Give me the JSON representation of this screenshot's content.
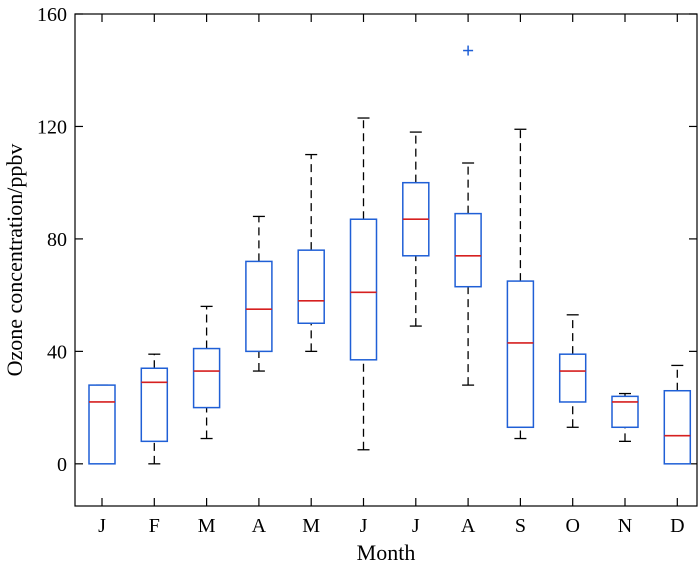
{
  "chart_data": {
    "type": "box",
    "xlabel": "Month",
    "ylabel": "Ozone concentration/ppbv",
    "ylim": [
      -15,
      160
    ],
    "yticks": [
      0,
      40,
      80,
      120,
      160
    ],
    "grid": false,
    "colors": {
      "box": "#1f5fd6",
      "median": "#d62020",
      "whisker": "#000000",
      "outlier": "#1f5fd6"
    },
    "categories": [
      "J",
      "F",
      "M",
      "A",
      "M",
      "J",
      "J",
      "A",
      "S",
      "O",
      "N",
      "D"
    ],
    "boxes": [
      {
        "whislo": 0,
        "q1": 0,
        "med": 22,
        "q3": 28,
        "whishi": 28,
        "outliers": []
      },
      {
        "whislo": 0,
        "q1": 8,
        "med": 29,
        "q3": 34,
        "whishi": 39,
        "outliers": []
      },
      {
        "whislo": 9,
        "q1": 20,
        "med": 33,
        "q3": 41,
        "whishi": 56,
        "outliers": []
      },
      {
        "whislo": 33,
        "q1": 40,
        "med": 55,
        "q3": 72,
        "whishi": 88,
        "outliers": []
      },
      {
        "whislo": 40,
        "q1": 50,
        "med": 58,
        "q3": 76,
        "whishi": 110,
        "outliers": []
      },
      {
        "whislo": 5,
        "q1": 37,
        "med": 61,
        "q3": 87,
        "whishi": 123,
        "outliers": []
      },
      {
        "whislo": 49,
        "q1": 74,
        "med": 87,
        "q3": 100,
        "whishi": 118,
        "outliers": []
      },
      {
        "whislo": 28,
        "q1": 63,
        "med": 74,
        "q3": 89,
        "whishi": 107,
        "outliers": [
          147
        ]
      },
      {
        "whislo": 9,
        "q1": 13,
        "med": 43,
        "q3": 65,
        "whishi": 119,
        "outliers": []
      },
      {
        "whislo": 13,
        "q1": 22,
        "med": 33,
        "q3": 39,
        "whishi": 53,
        "outliers": []
      },
      {
        "whislo": 8,
        "q1": 13,
        "med": 22,
        "q3": 24,
        "whishi": 25,
        "outliers": []
      },
      {
        "whislo": 0,
        "q1": 0,
        "med": 10,
        "q3": 26,
        "whishi": 35,
        "outliers": []
      }
    ]
  }
}
